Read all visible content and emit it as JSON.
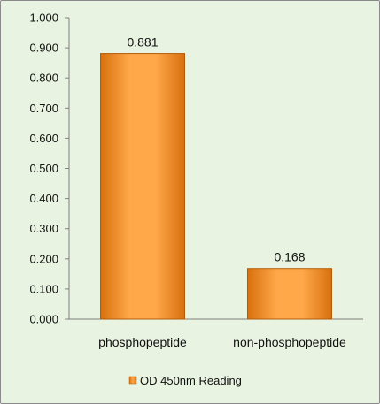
{
  "chart_data": {
    "type": "bar",
    "categories": [
      "phosphopeptide",
      "non-phosphopeptide"
    ],
    "series": [
      {
        "name": "OD 450nm Reading",
        "values": [
          0.881,
          0.168
        ]
      }
    ],
    "data_labels": [
      "0.881",
      "0.168"
    ],
    "ylim": [
      0,
      1.0
    ],
    "yticks": [
      0.0,
      0.1,
      0.2,
      0.3,
      0.4,
      0.5,
      0.6,
      0.7,
      0.8,
      0.9,
      1.0
    ],
    "ytick_labels": [
      "0.000",
      "0.100",
      "0.200",
      "0.300",
      "0.400",
      "0.500",
      "0.600",
      "0.700",
      "0.800",
      "0.900",
      "1.000"
    ],
    "grid": false,
    "legend_position": "bottom",
    "bar_color": "#f79530",
    "background_color": "#e8f3e1"
  }
}
